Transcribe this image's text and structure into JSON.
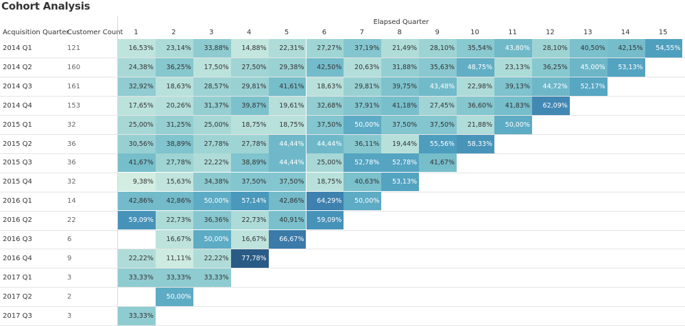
{
  "title": "Cohort Analysis",
  "headers": {
    "acquisition": "Acquisition Quarter",
    "count": "Customer Count",
    "elapsed": "Elapsed Quarter"
  },
  "chart_data": {
    "type": "heatmap",
    "title": "Cohort Analysis",
    "xlabel": "Elapsed Quarter",
    "ylabel": "Acquisition Quarter",
    "columns": [
      "1",
      "2",
      "3",
      "4",
      "5",
      "6",
      "7",
      "8",
      "9",
      "10",
      "11",
      "12",
      "13",
      "14",
      "15"
    ],
    "rows": [
      {
        "label": "2014 Q1",
        "count": "121",
        "values": [
          "16,53%",
          "23,14%",
          "33,88%",
          "14,88%",
          "22,31%",
          "27,27%",
          "37,19%",
          "21,49%",
          "28,10%",
          "35,54%",
          "43,80%",
          "28,10%",
          "40,50%",
          "42,15%",
          "54,55%"
        ]
      },
      {
        "label": "2014 Q2",
        "count": "160",
        "values": [
          "24,38%",
          "36,25%",
          "17,50%",
          "27,50%",
          "29,38%",
          "42,50%",
          "20,63%",
          "31,88%",
          "35,63%",
          "48,75%",
          "23,13%",
          "36,25%",
          "45,00%",
          "53,13%"
        ]
      },
      {
        "label": "2014 Q3",
        "count": "161",
        "values": [
          "32,92%",
          "18,63%",
          "28,57%",
          "29,81%",
          "41,61%",
          "18,63%",
          "29,81%",
          "39,75%",
          "43,48%",
          "22,98%",
          "39,13%",
          "44,72%",
          "52,17%"
        ]
      },
      {
        "label": "2014 Q4",
        "count": "153",
        "values": [
          "17,65%",
          "20,26%",
          "31,37%",
          "39,87%",
          "19,61%",
          "32,68%",
          "37,91%",
          "41,18%",
          "27,45%",
          "36,60%",
          "41,83%",
          "62,09%"
        ]
      },
      {
        "label": "2015 Q1",
        "count": "32",
        "values": [
          "25,00%",
          "31,25%",
          "25,00%",
          "18,75%",
          "18,75%",
          "37,50%",
          "50,00%",
          "37,50%",
          "37,50%",
          "21,88%",
          "50,00%"
        ]
      },
      {
        "label": "2015 Q2",
        "count": "36",
        "values": [
          "30,56%",
          "38,89%",
          "27,78%",
          "27,78%",
          "44,44%",
          "44,44%",
          "36,11%",
          "19,44%",
          "55,56%",
          "58,33%"
        ]
      },
      {
        "label": "2015 Q3",
        "count": "36",
        "values": [
          "41,67%",
          "27,78%",
          "22,22%",
          "38,89%",
          "44,44%",
          "25,00%",
          "52,78%",
          "52,78%",
          "41,67%"
        ]
      },
      {
        "label": "2015 Q4",
        "count": "32",
        "values": [
          "9,38%",
          "15,63%",
          "34,38%",
          "37,50%",
          "37,50%",
          "18,75%",
          "40,63%",
          "53,13%"
        ]
      },
      {
        "label": "2016 Q1",
        "count": "14",
        "values": [
          "42,86%",
          "42,86%",
          "50,00%",
          "57,14%",
          "42,86%",
          "64,29%",
          "50,00%"
        ]
      },
      {
        "label": "2016 Q2",
        "count": "22",
        "values": [
          "59,09%",
          "22,73%",
          "36,36%",
          "22,73%",
          "40,91%",
          "59,09%"
        ]
      },
      {
        "label": "2016 Q3",
        "count": "6",
        "values": [
          "",
          "16,67%",
          "50,00%",
          "16,67%",
          "66,67%"
        ]
      },
      {
        "label": "2016 Q4",
        "count": "9",
        "values": [
          "22,22%",
          "11,11%",
          "22,22%",
          "77,78%"
        ]
      },
      {
        "label": "2017 Q1",
        "count": "3",
        "values": [
          "33,33%",
          "33,33%",
          "33,33%"
        ]
      },
      {
        "label": "2017 Q2",
        "count": "2",
        "values": [
          "",
          "50,00%"
        ]
      },
      {
        "label": "2017 Q3",
        "count": "3",
        "values": [
          "33,33%"
        ]
      }
    ],
    "color_scale": {
      "low": "#d1ece1",
      "mid": "#5fb3c3",
      "high": "#2a5d86"
    }
  }
}
